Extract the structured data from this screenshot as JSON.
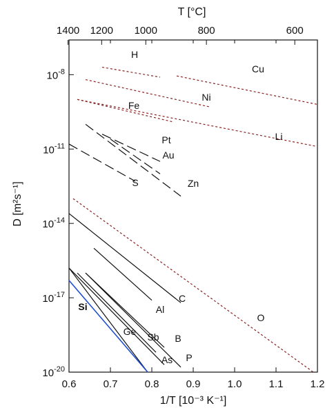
{
  "chart_data": {
    "type": "line",
    "title": "",
    "xlabel": "1/T  [10⁻³ K⁻¹]",
    "ylabel": "D  [m²s⁻¹]",
    "top_axis_label": "T [°C]",
    "xlim": [
      0.6,
      1.2
    ],
    "ylim_log10": [
      -20,
      -6.6
    ],
    "y_scale": "log",
    "grid": false,
    "x_ticks": [
      0.6,
      0.7,
      0.8,
      0.9,
      1.0,
      1.1,
      1.2
    ],
    "x_tick_labels": [
      "0.6",
      "0.7",
      "0.8",
      "0.9",
      "1.0",
      "1.1",
      "1.2"
    ],
    "y_ticks_log10": [
      -20,
      -17,
      -14,
      -11,
      -8
    ],
    "y_tick_labels": [
      "10-20",
      "10-17",
      "10-14",
      "10-11",
      "10-8"
    ],
    "top_ticks_celsius": [
      1400,
      1200,
      1000,
      800,
      600
    ],
    "top_tick_labels": [
      "1400",
      "1200",
      "1000",
      "800",
      "600"
    ],
    "series": [
      {
        "name": "H",
        "style": "dashed",
        "color": "#8a2020",
        "x": [
          0.68,
          0.82
        ],
        "log10_y": [
          -7.7,
          -8.1
        ]
      },
      {
        "name": "Cu",
        "style": "dashed",
        "color": "#8a2020",
        "x": [
          0.86,
          1.2
        ],
        "log10_y": [
          -8.05,
          -9.2
        ]
      },
      {
        "name": "Ni",
        "style": "dashed",
        "color": "#8a2020",
        "x": [
          0.64,
          0.94
        ],
        "log10_y": [
          -8.2,
          -9.3
        ]
      },
      {
        "name": "Fe",
        "style": "dashed",
        "color": "#8a2020",
        "x": [
          0.62,
          0.85
        ],
        "log10_y": [
          -9.0,
          -9.9
        ]
      },
      {
        "name": "Li",
        "style": "dashed",
        "color": "#8a2020",
        "x": [
          0.62,
          1.2
        ],
        "log10_y": [
          -9.0,
          -10.9
        ]
      },
      {
        "name": "Pt",
        "style": "longdash",
        "color": "#111111",
        "x": [
          0.68,
          0.82
        ],
        "log10_y": [
          -10.4,
          -11.5
        ]
      },
      {
        "name": "Au",
        "style": "longdash",
        "color": "#111111",
        "x": [
          0.7,
          0.82
        ],
        "log10_y": [
          -10.6,
          -12.0
        ]
      },
      {
        "name": "Zn",
        "style": "longdash",
        "color": "#111111",
        "x": [
          0.64,
          0.87
        ],
        "log10_y": [
          -10.0,
          -12.9
        ]
      },
      {
        "name": "S",
        "style": "longdash",
        "color": "#111111",
        "x": [
          0.6,
          0.76
        ],
        "log10_y": [
          -10.8,
          -12.3
        ]
      },
      {
        "name": "O",
        "style": "dashed",
        "color": "#8a2020",
        "x": [
          0.61,
          1.19
        ],
        "log10_y": [
          -13.0,
          -20.0
        ]
      },
      {
        "name": "C",
        "style": "solid",
        "color": "#111111",
        "x": [
          0.6,
          0.87
        ],
        "log10_y": [
          -13.6,
          -17.2
        ]
      },
      {
        "name": "Al",
        "style": "solid",
        "color": "#111111",
        "x": [
          0.66,
          0.8
        ],
        "log10_y": [
          -15.0,
          -17.1
        ]
      },
      {
        "name": "B",
        "style": "solid",
        "color": "#111111",
        "x": [
          0.64,
          0.83
        ],
        "log10_y": [
          -16.0,
          -19.0
        ]
      },
      {
        "name": "Sb",
        "style": "solid",
        "color": "#111111",
        "x": [
          0.62,
          0.81
        ],
        "log10_y": [
          -16.0,
          -19.2
        ]
      },
      {
        "name": "P",
        "style": "solid",
        "color": "#111111",
        "x": [
          0.64,
          0.87
        ],
        "log10_y": [
          -16.0,
          -19.8
        ]
      },
      {
        "name": "As",
        "style": "solid",
        "color": "#111111",
        "x": [
          0.6,
          0.83
        ],
        "log10_y": [
          -15.8,
          -19.7
        ]
      },
      {
        "name": "Ge",
        "style": "solid",
        "color": "#111111",
        "x": [
          0.6,
          0.79
        ],
        "log10_y": [
          -15.8,
          -20.0
        ]
      },
      {
        "name": "Si",
        "style": "solid",
        "color": "#1f4fd0",
        "x": [
          0.6,
          0.79
        ],
        "log10_y": [
          -16.3,
          -20.0
        ]
      }
    ]
  }
}
